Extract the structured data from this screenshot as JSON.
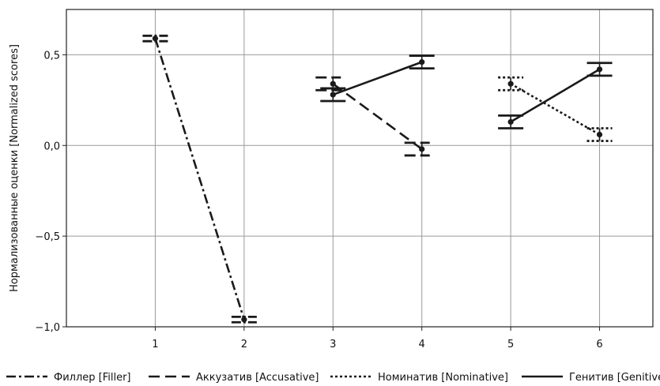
{
  "chart_data": {
    "type": "line",
    "ylabel": "Нормализованные оценки [Normalized scores]",
    "xlabel": "",
    "x_ticks": [
      "1",
      "2",
      "3",
      "4",
      "5",
      "6"
    ],
    "y_ticks": [
      "−1,0",
      "−0,5",
      "0,0",
      "0,5"
    ],
    "y_tick_values": [
      -1.0,
      -0.5,
      0.0,
      0.5
    ],
    "ylim": [
      -1.0,
      0.75
    ],
    "xlim": [
      0,
      6.6
    ],
    "grid": true,
    "legend_position": "bottom",
    "series": [
      {
        "name": "Филлер [Filler]",
        "style": "dashdot",
        "points": [
          {
            "x": 1,
            "y": 0.59,
            "err": 0.015
          },
          {
            "x": 2,
            "y": -0.96,
            "err": 0.015
          }
        ]
      },
      {
        "name": "Аккузатив [Accusative]",
        "style": "dashed",
        "points": [
          {
            "x": 3,
            "y": 0.34,
            "err": 0.035
          },
          {
            "x": 4,
            "y": -0.02,
            "err": 0.035
          }
        ]
      },
      {
        "name": "Номинатив [Nominative]",
        "style": "dotted",
        "points": [
          {
            "x": 5,
            "y": 0.34,
            "err": 0.035
          },
          {
            "x": 6,
            "y": 0.06,
            "err": 0.035
          }
        ]
      },
      {
        "name": "Генитив [Genitive]",
        "style": "solid",
        "points": [
          {
            "x": 3,
            "y": 0.28,
            "err": 0.035
          },
          {
            "x": 4,
            "y": 0.46,
            "err": 0.035
          },
          {
            "x": 5,
            "y": 0.13,
            "err": 0.035
          },
          {
            "x": 6,
            "y": 0.42,
            "err": 0.035
          }
        ]
      }
    ]
  },
  "legend": {
    "filler": "Филлер [Filler]",
    "accusative": "Аккузатив [Accusative]",
    "nominative": "Номинатив [Nominative]",
    "genitive": "Генитив [Genitive]"
  },
  "colors": {
    "line": "#1a1a1a",
    "grid": "#9a9a9a"
  }
}
